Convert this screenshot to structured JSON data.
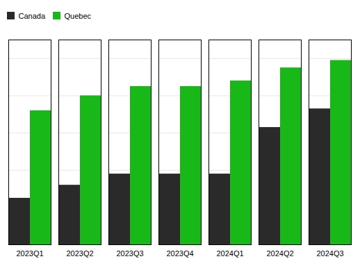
{
  "chart_data": {
    "type": "bar",
    "categories": [
      "2023Q1",
      "2023Q2",
      "2023Q3",
      "2023Q4",
      "2024Q1",
      "2024Q2",
      "2024Q3"
    ],
    "series": [
      {
        "name": "Canada",
        "color": "#2a2a2a",
        "values": [
          2.5,
          3.2,
          3.8,
          3.8,
          3.8,
          6.3,
          7.3
        ]
      },
      {
        "name": "Quebec",
        "color": "#18b818",
        "values": [
          7.2,
          8.0,
          8.5,
          8.5,
          8.8,
          9.5,
          9.9
        ]
      }
    ],
    "ylim": [
      0,
      11
    ],
    "yticks": [
      0,
      2,
      4,
      6,
      8,
      10
    ],
    "grid": true,
    "legend": "upper left",
    "tick_labels": "x"
  }
}
